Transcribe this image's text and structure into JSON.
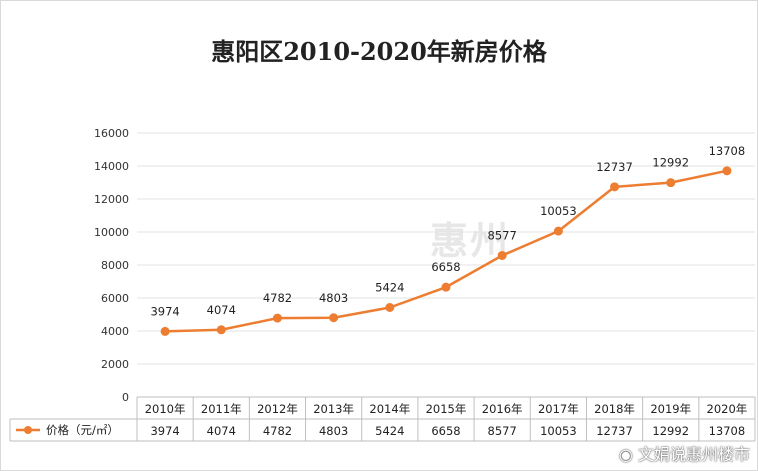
{
  "chart_data": {
    "type": "line",
    "title": "惠阳区2010-2020年新房价格",
    "categories": [
      "2010年",
      "2011年",
      "2012年",
      "2013年",
      "2014年",
      "2015年",
      "2016年",
      "2017年",
      "2018年",
      "2019年",
      "2020年"
    ],
    "series": [
      {
        "name": "价格（元/㎡）",
        "values": [
          3974,
          4074,
          4782,
          4803,
          5424,
          6658,
          8577,
          10053,
          12737,
          12992,
          13708
        ],
        "color": "#ed7d31"
      }
    ],
    "yticks": [
      "0",
      "2000",
      "4000",
      "6000",
      "8000",
      "10000",
      "12000",
      "14000",
      "16000"
    ],
    "ylim": [
      0,
      16000
    ],
    "grid": true,
    "legend": "data-table",
    "data_table": true
  },
  "watermark": "惠州",
  "credit": "文娟说惠州楼市"
}
